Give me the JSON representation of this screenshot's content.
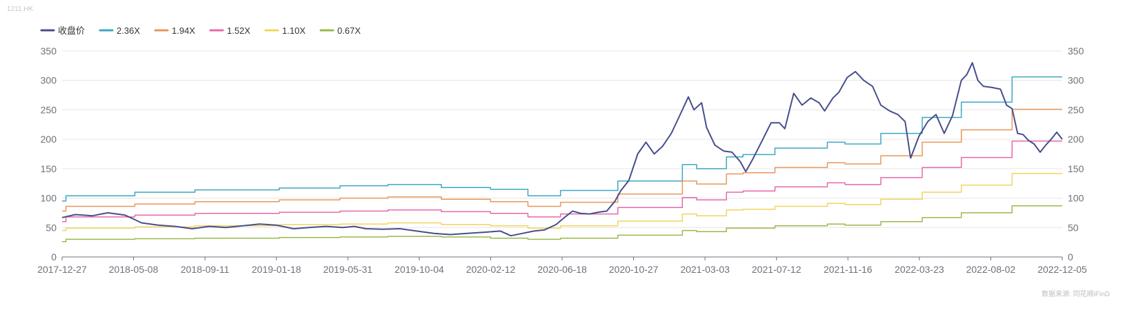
{
  "header": {
    "ticker": "1211.HK"
  },
  "footer": {
    "source": "数据来源: 同花顺iFinD"
  },
  "chart_data": {
    "type": "line",
    "title": "",
    "xlabel": "",
    "ylabel": "",
    "ylim": [
      0,
      350
    ],
    "y_ticks": [
      0,
      50,
      100,
      150,
      200,
      250,
      300,
      350
    ],
    "x_start": "2017-12-27",
    "x_end": "2022-12-15",
    "x_tick_labels": [
      "2017-12-27",
      "2018-05-08",
      "2018-09-11",
      "2019-01-18",
      "2019-05-31",
      "2019-10-04",
      "2020-02-12",
      "2020-06-18",
      "2020-10-27",
      "2021-03-03",
      "2021-07-12",
      "2021-11-16",
      "2022-03-23",
      "2022-08-02",
      "2022-12-05"
    ],
    "grid": true,
    "legend": "top-left",
    "series": [
      {
        "name": "收盘价",
        "color": "#464e8c",
        "style": "line",
        "points": [
          [
            "2017-12-27",
            67
          ],
          [
            "2018-01-20",
            72
          ],
          [
            "2018-02-20",
            70
          ],
          [
            "2018-03-20",
            75
          ],
          [
            "2018-04-20",
            71
          ],
          [
            "2018-05-02",
            66
          ],
          [
            "2018-05-20",
            58
          ],
          [
            "2018-06-20",
            54
          ],
          [
            "2018-07-20",
            52
          ],
          [
            "2018-08-20",
            48
          ],
          [
            "2018-09-20",
            52
          ],
          [
            "2018-10-20",
            50
          ],
          [
            "2018-11-20",
            53
          ],
          [
            "2018-12-20",
            56
          ],
          [
            "2019-01-20",
            54
          ],
          [
            "2019-02-20",
            48
          ],
          [
            "2019-03-20",
            50
          ],
          [
            "2019-04-20",
            52
          ],
          [
            "2019-05-20",
            50
          ],
          [
            "2019-06-10",
            52
          ],
          [
            "2019-07-01",
            48
          ],
          [
            "2019-08-01",
            47
          ],
          [
            "2019-09-01",
            48
          ],
          [
            "2019-10-01",
            44
          ],
          [
            "2019-11-01",
            40
          ],
          [
            "2019-12-01",
            38
          ],
          [
            "2020-01-01",
            40
          ],
          [
            "2020-02-01",
            42
          ],
          [
            "2020-03-01",
            44
          ],
          [
            "2020-03-20",
            36
          ],
          [
            "2020-04-10",
            40
          ],
          [
            "2020-05-01",
            44
          ],
          [
            "2020-05-20",
            46
          ],
          [
            "2020-06-10",
            55
          ],
          [
            "2020-06-25",
            67
          ],
          [
            "2020-07-10",
            78
          ],
          [
            "2020-07-25",
            74
          ],
          [
            "2020-08-10",
            73
          ],
          [
            "2020-08-25",
            76
          ],
          [
            "2020-09-10",
            78
          ],
          [
            "2020-09-25",
            95
          ],
          [
            "2020-10-05",
            112
          ],
          [
            "2020-10-20",
            130
          ],
          [
            "2020-11-05",
            175
          ],
          [
            "2020-11-20",
            195
          ],
          [
            "2020-12-05",
            175
          ],
          [
            "2020-12-20",
            188
          ],
          [
            "2021-01-05",
            210
          ],
          [
            "2021-01-20",
            240
          ],
          [
            "2021-02-05",
            272
          ],
          [
            "2021-02-15",
            250
          ],
          [
            "2021-03-01",
            262
          ],
          [
            "2021-03-10",
            220
          ],
          [
            "2021-03-25",
            190
          ],
          [
            "2021-04-10",
            180
          ],
          [
            "2021-04-25",
            178
          ],
          [
            "2021-05-10",
            162
          ],
          [
            "2021-05-20",
            145
          ],
          [
            "2021-06-01",
            165
          ],
          [
            "2021-06-20",
            200
          ],
          [
            "2021-07-05",
            228
          ],
          [
            "2021-07-20",
            228
          ],
          [
            "2021-07-30",
            218
          ],
          [
            "2021-08-15",
            278
          ],
          [
            "2021-08-30",
            258
          ],
          [
            "2021-09-15",
            270
          ],
          [
            "2021-09-30",
            262
          ],
          [
            "2021-10-10",
            248
          ],
          [
            "2021-10-25",
            270
          ],
          [
            "2021-11-05",
            280
          ],
          [
            "2021-11-20",
            305
          ],
          [
            "2021-12-05",
            315
          ],
          [
            "2021-12-20",
            300
          ],
          [
            "2022-01-05",
            290
          ],
          [
            "2022-01-20",
            258
          ],
          [
            "2022-02-05",
            248
          ],
          [
            "2022-02-20",
            242
          ],
          [
            "2022-03-05",
            230
          ],
          [
            "2022-03-15",
            168
          ],
          [
            "2022-03-30",
            205
          ],
          [
            "2022-04-15",
            230
          ],
          [
            "2022-04-30",
            242
          ],
          [
            "2022-05-15",
            210
          ],
          [
            "2022-05-30",
            240
          ],
          [
            "2022-06-15",
            300
          ],
          [
            "2022-06-25",
            310
          ],
          [
            "2022-07-05",
            330
          ],
          [
            "2022-07-15",
            300
          ],
          [
            "2022-07-25",
            290
          ],
          [
            "2022-08-10",
            288
          ],
          [
            "2022-08-25",
            285
          ],
          [
            "2022-09-05",
            258
          ],
          [
            "2022-09-15",
            252
          ],
          [
            "2022-09-25",
            210
          ],
          [
            "2022-10-05",
            208
          ],
          [
            "2022-10-15",
            198
          ],
          [
            "2022-10-25",
            192
          ],
          [
            "2022-11-05",
            178
          ],
          [
            "2022-11-15",
            190
          ],
          [
            "2022-11-25",
            200
          ],
          [
            "2022-12-05",
            212
          ],
          [
            "2022-12-15",
            200
          ]
        ]
      },
      {
        "name": "2.36X",
        "color": "#3ba7c3",
        "style": "step",
        "points": [
          [
            "2017-12-27",
            95
          ],
          [
            "2018-01-03",
            104
          ],
          [
            "2018-05-08",
            110
          ],
          [
            "2018-08-25",
            114
          ],
          [
            "2019-01-25",
            117
          ],
          [
            "2019-05-15",
            121
          ],
          [
            "2019-08-10",
            123
          ],
          [
            "2019-11-15",
            118
          ],
          [
            "2020-02-12",
            115
          ],
          [
            "2020-04-20",
            104
          ],
          [
            "2020-06-18",
            113
          ],
          [
            "2020-09-30",
            129
          ],
          [
            "2021-01-25",
            157
          ],
          [
            "2021-02-20",
            150
          ],
          [
            "2021-04-15",
            170
          ],
          [
            "2021-05-15",
            174
          ],
          [
            "2021-07-12",
            185
          ],
          [
            "2021-10-15",
            195
          ],
          [
            "2021-11-16",
            192
          ],
          [
            "2022-01-20",
            210
          ],
          [
            "2022-04-05",
            237
          ],
          [
            "2022-06-15",
            263
          ],
          [
            "2022-09-15",
            306
          ],
          [
            "2022-12-15",
            306
          ]
        ]
      },
      {
        "name": "1.94X",
        "color": "#e8965a",
        "style": "step",
        "points": [
          [
            "2017-12-27",
            78
          ],
          [
            "2018-01-03",
            86
          ],
          [
            "2018-05-08",
            90
          ],
          [
            "2018-08-25",
            94
          ],
          [
            "2019-01-25",
            97
          ],
          [
            "2019-05-15",
            100
          ],
          [
            "2019-08-10",
            102
          ],
          [
            "2019-11-15",
            98
          ],
          [
            "2020-02-12",
            94
          ],
          [
            "2020-04-20",
            86
          ],
          [
            "2020-06-18",
            93
          ],
          [
            "2020-09-30",
            107
          ],
          [
            "2021-01-25",
            129
          ],
          [
            "2021-02-20",
            124
          ],
          [
            "2021-04-15",
            141
          ],
          [
            "2021-05-15",
            143
          ],
          [
            "2021-07-12",
            152
          ],
          [
            "2021-10-15",
            160
          ],
          [
            "2021-11-16",
            158
          ],
          [
            "2022-01-20",
            172
          ],
          [
            "2022-04-05",
            195
          ],
          [
            "2022-06-15",
            216
          ],
          [
            "2022-09-15",
            251
          ],
          [
            "2022-12-15",
            251
          ]
        ]
      },
      {
        "name": "1.52X",
        "color": "#e668a7",
        "style": "step",
        "points": [
          [
            "2017-12-27",
            60
          ],
          [
            "2018-01-03",
            68
          ],
          [
            "2018-05-08",
            71
          ],
          [
            "2018-08-25",
            74
          ],
          [
            "2019-01-25",
            76
          ],
          [
            "2019-05-15",
            78
          ],
          [
            "2019-08-10",
            80
          ],
          [
            "2019-11-15",
            77
          ],
          [
            "2020-02-12",
            74
          ],
          [
            "2020-04-20",
            68
          ],
          [
            "2020-06-18",
            73
          ],
          [
            "2020-09-30",
            84
          ],
          [
            "2021-01-25",
            101
          ],
          [
            "2021-02-20",
            97
          ],
          [
            "2021-04-15",
            110
          ],
          [
            "2021-05-15",
            112
          ],
          [
            "2021-07-12",
            119
          ],
          [
            "2021-10-15",
            126
          ],
          [
            "2021-11-16",
            123
          ],
          [
            "2022-01-20",
            135
          ],
          [
            "2022-04-05",
            152
          ],
          [
            "2022-06-15",
            169
          ],
          [
            "2022-09-15",
            197
          ],
          [
            "2022-12-15",
            197
          ]
        ]
      },
      {
        "name": "1.10X",
        "color": "#f2d45c",
        "style": "step",
        "points": [
          [
            "2017-12-27",
            45
          ],
          [
            "2018-01-03",
            49
          ],
          [
            "2018-05-08",
            51
          ],
          [
            "2018-08-25",
            53
          ],
          [
            "2019-01-25",
            55
          ],
          [
            "2019-05-15",
            56
          ],
          [
            "2019-08-10",
            58
          ],
          [
            "2019-11-15",
            55
          ],
          [
            "2020-02-12",
            53
          ],
          [
            "2020-04-20",
            49
          ],
          [
            "2020-06-18",
            53
          ],
          [
            "2020-09-30",
            61
          ],
          [
            "2021-01-25",
            73
          ],
          [
            "2021-02-20",
            70
          ],
          [
            "2021-04-15",
            80
          ],
          [
            "2021-05-15",
            81
          ],
          [
            "2021-07-12",
            86
          ],
          [
            "2021-10-15",
            91
          ],
          [
            "2021-11-16",
            89
          ],
          [
            "2022-01-20",
            98
          ],
          [
            "2022-04-05",
            110
          ],
          [
            "2022-06-15",
            122
          ],
          [
            "2022-09-15",
            142
          ],
          [
            "2022-12-15",
            142
          ]
        ]
      },
      {
        "name": "0.67X",
        "color": "#9ab84a",
        "style": "step",
        "points": [
          [
            "2017-12-27",
            26
          ],
          [
            "2018-01-03",
            30
          ],
          [
            "2018-05-08",
            31
          ],
          [
            "2018-08-25",
            32
          ],
          [
            "2019-01-25",
            33
          ],
          [
            "2019-05-15",
            34
          ],
          [
            "2019-08-10",
            35
          ],
          [
            "2019-11-15",
            34
          ],
          [
            "2020-02-12",
            32
          ],
          [
            "2020-04-20",
            30
          ],
          [
            "2020-06-18",
            32
          ],
          [
            "2020-09-30",
            37
          ],
          [
            "2021-01-25",
            45
          ],
          [
            "2021-02-20",
            43
          ],
          [
            "2021-04-15",
            49
          ],
          [
            "2021-05-15",
            49
          ],
          [
            "2021-07-12",
            53
          ],
          [
            "2021-10-15",
            56
          ],
          [
            "2021-11-16",
            54
          ],
          [
            "2022-01-20",
            60
          ],
          [
            "2022-04-05",
            67
          ],
          [
            "2022-06-15",
            75
          ],
          [
            "2022-09-15",
            87
          ],
          [
            "2022-12-15",
            87
          ]
        ]
      }
    ]
  }
}
